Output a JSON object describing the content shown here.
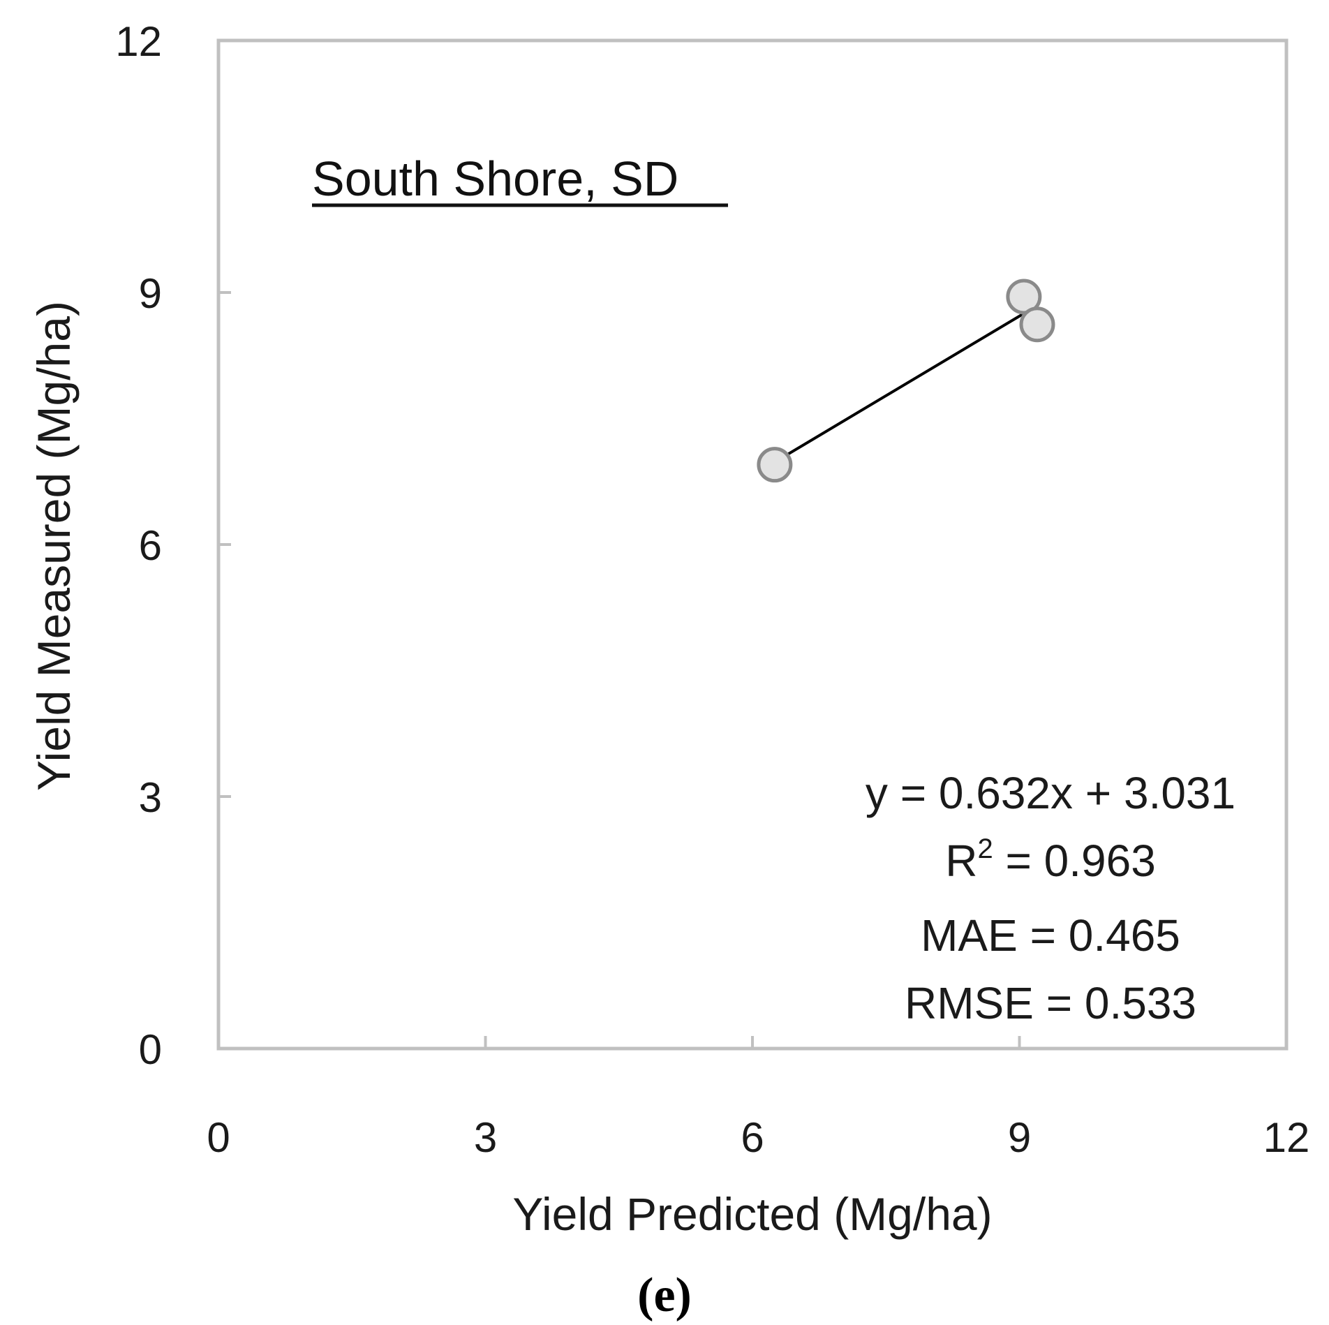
{
  "chart_data": {
    "type": "scatter",
    "xlabel": "Yield Predicted (Mg/ha)",
    "ylabel": "Yield Measured (Mg/ha)",
    "xlim": [
      0,
      12
    ],
    "ylim": [
      0,
      12
    ],
    "x_ticks": [
      "0",
      "3",
      "6",
      "9",
      "12"
    ],
    "y_ticks": [
      "0",
      "3",
      "6",
      "9",
      "12"
    ],
    "grid": false,
    "panel_label": "South Shore, SD",
    "series": [
      {
        "points": [
          {
            "x": 6.25,
            "y": 6.95
          },
          {
            "x": 9.05,
            "y": 8.95
          },
          {
            "x": 9.2,
            "y": 8.62
          }
        ]
      }
    ],
    "trendline": {
      "x_start": 6.25,
      "x_end": 9.2,
      "slope": 0.632,
      "intercept": 3.031
    },
    "annotations": {
      "equation": "y = 0.632x + 3.031",
      "r2_prefix": "R",
      "r2_sup": "2",
      "r2_value": " = 0.963",
      "mae": "MAE = 0.465",
      "rmse": "RMSE = 0.533"
    },
    "caption": "(e)"
  },
  "colors": {
    "frame": "#c0c0c0",
    "marker_fill": "#e3e3e3",
    "marker_stroke": "#8a8a8a",
    "trendline": "#000000"
  }
}
